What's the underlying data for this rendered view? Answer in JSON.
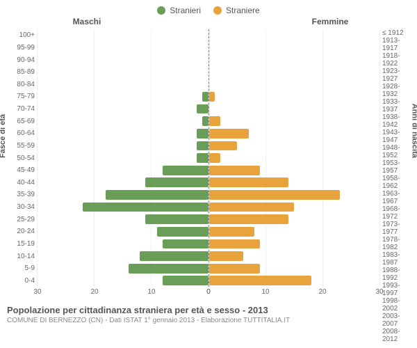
{
  "chart": {
    "type": "population-pyramid",
    "legend": [
      {
        "label": "Stranieri",
        "color": "#6a9e58"
      },
      {
        "label": "Straniere",
        "color": "#e8a33d"
      }
    ],
    "col_left": "Maschi",
    "col_right": "Femmine",
    "y_title_left": "Fasce di età",
    "y_title_right": "Anni di nascita",
    "x_max": 30,
    "x_ticks": [
      0,
      10,
      20,
      30
    ],
    "x_ticks_left": [
      30,
      20,
      10,
      0
    ],
    "background_color": "#ffffff",
    "grid_color": "#eeeeee",
    "bar_color_male": "#6a9e58",
    "bar_color_female": "#e8a33d",
    "rows": [
      {
        "age": "100+",
        "birth": "≤ 1912",
        "m": 0,
        "f": 0
      },
      {
        "age": "95-99",
        "birth": "1913-1917",
        "m": 0,
        "f": 0
      },
      {
        "age": "90-94",
        "birth": "1918-1922",
        "m": 0,
        "f": 0
      },
      {
        "age": "85-89",
        "birth": "1923-1927",
        "m": 0,
        "f": 0
      },
      {
        "age": "80-84",
        "birth": "1928-1932",
        "m": 0,
        "f": 0
      },
      {
        "age": "75-79",
        "birth": "1933-1937",
        "m": 1,
        "f": 1
      },
      {
        "age": "70-74",
        "birth": "1938-1942",
        "m": 2,
        "f": 0
      },
      {
        "age": "65-69",
        "birth": "1943-1947",
        "m": 1,
        "f": 2
      },
      {
        "age": "60-64",
        "birth": "1948-1952",
        "m": 2,
        "f": 7
      },
      {
        "age": "55-59",
        "birth": "1953-1957",
        "m": 2,
        "f": 5
      },
      {
        "age": "50-54",
        "birth": "1958-1962",
        "m": 2,
        "f": 2
      },
      {
        "age": "45-49",
        "birth": "1963-1967",
        "m": 8,
        "f": 9
      },
      {
        "age": "40-44",
        "birth": "1968-1972",
        "m": 11,
        "f": 14
      },
      {
        "age": "35-39",
        "birth": "1973-1977",
        "m": 18,
        "f": 23
      },
      {
        "age": "30-34",
        "birth": "1978-1982",
        "m": 22,
        "f": 15
      },
      {
        "age": "25-29",
        "birth": "1983-1987",
        "m": 11,
        "f": 14
      },
      {
        "age": "20-24",
        "birth": "1988-1992",
        "m": 9,
        "f": 8
      },
      {
        "age": "15-19",
        "birth": "1993-1997",
        "m": 8,
        "f": 9
      },
      {
        "age": "10-14",
        "birth": "1998-2002",
        "m": 12,
        "f": 6
      },
      {
        "age": "5-9",
        "birth": "2003-2007",
        "m": 14,
        "f": 9
      },
      {
        "age": "0-4",
        "birth": "2008-2012",
        "m": 8,
        "f": 18
      }
    ],
    "title": "Popolazione per cittadinanza straniera per età e sesso - 2013",
    "subtitle": "COMUNE DI BERNEZZO (CN) - Dati ISTAT 1° gennaio 2013 - Elaborazione TUTTITALIA.IT"
  }
}
